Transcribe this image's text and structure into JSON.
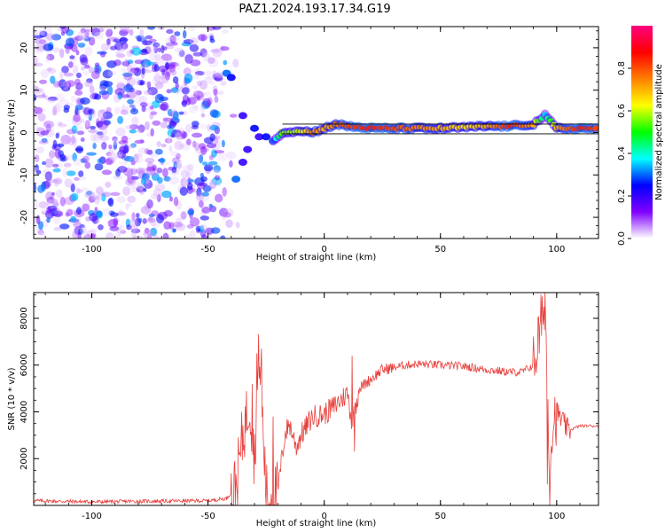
{
  "figure": {
    "title": "PAZ1.2024.193.17.34.G19"
  },
  "chart_data": [
    {
      "type": "heatmap",
      "xlabel": "Height of straight line (km)",
      "ylabel": "Frequency (Hz)",
      "xlim": [
        -125,
        118
      ],
      "ylim": [
        -25,
        25
      ],
      "xticks": [
        -100,
        -50,
        0,
        50,
        100
      ],
      "yticks": [
        -20,
        -10,
        0,
        10,
        20
      ],
      "colorbar": {
        "label": "Normalized spectral amplitude",
        "range": [
          0,
          1
        ],
        "ticks": [
          0.0,
          0.2,
          0.4,
          0.6,
          0.8
        ],
        "tick_labels": [
          "0.0",
          "0.2",
          "0.4",
          "0.6",
          "0.8"
        ],
        "colormap": [
          "#ffffff",
          "#8000ff",
          "#0000ff",
          "#00ffff",
          "#00ff00",
          "#ffff00",
          "#ff8000",
          "#ff0000",
          "#ff0080"
        ]
      },
      "ridge": [
        {
          "x": -42,
          "y": 14,
          "amp": 0.3
        },
        {
          "x": -40,
          "y": 13,
          "amp": 0.25
        },
        {
          "x": -35,
          "y": 4,
          "amp": 0.2
        },
        {
          "x": -30,
          "y": 1,
          "amp": 0.25
        },
        {
          "x": -28,
          "y": -1,
          "amp": 0.2
        },
        {
          "x": -25,
          "y": -1,
          "amp": 0.25
        },
        {
          "x": -33,
          "y": -4,
          "amp": 0.2
        },
        {
          "x": -35,
          "y": -7,
          "amp": 0.2
        },
        {
          "x": -38,
          "y": -11,
          "amp": 0.3
        },
        {
          "x": -22,
          "y": -2,
          "amp": 0.3
        },
        {
          "x": -18,
          "y": 0,
          "amp": 0.55
        },
        {
          "x": -10,
          "y": 0.5,
          "amp": 0.6
        },
        {
          "x": -5,
          "y": 0,
          "amp": 0.75
        },
        {
          "x": 0,
          "y": 1,
          "amp": 0.7
        },
        {
          "x": 5,
          "y": 2,
          "amp": 0.75
        },
        {
          "x": 10,
          "y": 1.5,
          "amp": 0.8
        },
        {
          "x": 20,
          "y": 1,
          "amp": 0.85
        },
        {
          "x": 30,
          "y": 1,
          "amp": 0.8
        },
        {
          "x": 40,
          "y": 1,
          "amp": 0.75
        },
        {
          "x": 50,
          "y": 1,
          "amp": 0.7
        },
        {
          "x": 60,
          "y": 1.2,
          "amp": 0.65
        },
        {
          "x": 70,
          "y": 1.5,
          "amp": 0.7
        },
        {
          "x": 80,
          "y": 1.5,
          "amp": 0.85
        },
        {
          "x": 90,
          "y": 2,
          "amp": 0.7
        },
        {
          "x": 95,
          "y": 4,
          "amp": 0.35
        },
        {
          "x": 100,
          "y": 1,
          "amp": 0.7
        },
        {
          "x": 110,
          "y": 1,
          "amp": 0.85
        },
        {
          "x": 118,
          "y": 1,
          "amp": 0.8
        }
      ],
      "noise": {
        "xrange": [
          -125,
          -45
        ],
        "amp_range": [
          0.02,
          0.35
        ]
      }
    },
    {
      "type": "line",
      "xlabel": "Height of straight line (km)",
      "ylabel": "SNR (10 * v/v)",
      "xlim": [
        -125,
        118
      ],
      "ylim": [
        0,
        9100
      ],
      "xticks": [
        -100,
        -50,
        0,
        50,
        100
      ],
      "yticks": [
        2000,
        4000,
        6000,
        8000
      ],
      "color": "#e8403c",
      "x": [
        -125,
        -100,
        -75,
        -50,
        -42,
        -38,
        -35,
        -32,
        -30,
        -28,
        -25,
        -23,
        -20,
        -17,
        -15,
        -12,
        -10,
        -5,
        0,
        5,
        10,
        12,
        15,
        20,
        25,
        30,
        35,
        40,
        50,
        60,
        70,
        80,
        85,
        90,
        93,
        95,
        96,
        97,
        98,
        100,
        105,
        110,
        118
      ],
      "y": [
        200,
        150,
        180,
        200,
        300,
        800,
        3000,
        4500,
        2000,
        6600,
        500,
        200,
        600,
        3000,
        3500,
        2500,
        3000,
        3800,
        3900,
        4300,
        4800,
        3500,
        5000,
        5400,
        5800,
        5900,
        6000,
        6050,
        6000,
        5950,
        5800,
        5700,
        5700,
        6000,
        7500,
        9000,
        5000,
        1200,
        3500,
        4000,
        3200,
        3400,
        3400
      ],
      "spikes": [
        {
          "x": -31,
          "y": 5200
        },
        {
          "x": -29,
          "y": 6500
        },
        {
          "x": -27,
          "y": 6700
        },
        {
          "x": -22,
          "y": 3800
        },
        {
          "x": 12,
          "y": 6400
        },
        {
          "x": 13,
          "y": 2300
        },
        {
          "x": 94,
          "y": 8300
        },
        {
          "x": 95,
          "y": 9100
        },
        {
          "x": 96,
          "y": 900
        }
      ]
    }
  ]
}
